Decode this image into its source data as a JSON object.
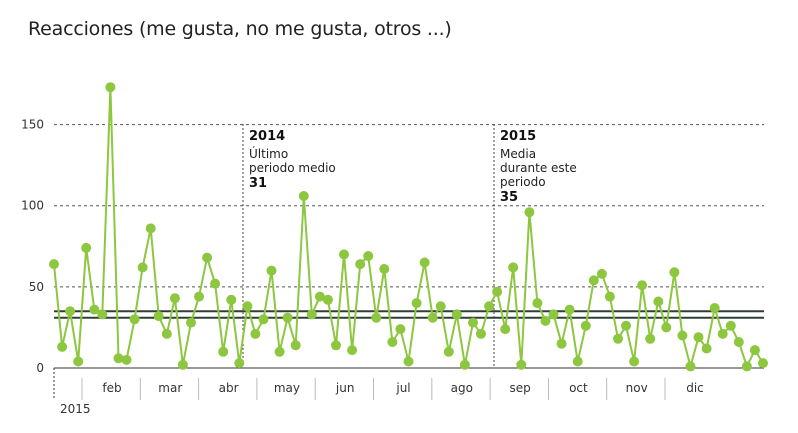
{
  "chart_data": {
    "type": "line",
    "title": "Reacciones (me gusta, no me gusta, otros ...)",
    "xlabel": "",
    "ylabel": "",
    "ylim": [
      0,
      175
    ],
    "yticks": [
      0,
      50,
      100,
      150
    ],
    "year_label": "2015",
    "months": [
      "feb",
      "mar",
      "abr",
      "may",
      "jun",
      "jul",
      "ago",
      "sep",
      "oct",
      "nov",
      "dic"
    ],
    "grid": "horizontal dashed",
    "series": [
      {
        "color": "#8dc63f",
        "values": [
          64,
          13,
          35,
          4,
          74,
          36,
          33,
          173,
          6,
          5,
          30,
          62,
          86,
          32,
          21,
          43,
          2,
          28,
          44,
          68,
          52,
          10,
          42,
          3,
          38,
          21,
          30,
          60,
          10,
          31,
          14,
          106,
          33,
          44,
          42,
          14,
          70,
          11,
          64,
          69,
          31,
          61,
          16,
          24,
          4,
          40,
          65,
          31,
          38,
          10,
          33,
          2,
          28,
          21,
          38,
          47,
          24,
          62,
          2,
          96,
          40,
          29,
          33,
          15,
          36,
          4,
          26,
          54,
          58,
          44,
          18,
          26,
          4,
          51,
          18,
          41,
          25,
          59,
          20,
          1,
          19,
          12,
          37,
          21,
          26,
          16,
          1,
          11,
          3
        ]
      }
    ],
    "reference_lines": [
      {
        "value": 31,
        "color": "#2f3f35"
      },
      {
        "value": 35,
        "color": "#2f3f35"
      }
    ],
    "annotations": [
      {
        "year": "2014",
        "text": [
          "Último",
          "periodo medio"
        ],
        "value": "31"
      },
      {
        "year": "2015",
        "text": [
          "Media",
          "durante este",
          "periodo"
        ],
        "value": "35"
      }
    ]
  },
  "colors": {
    "line": "#8dc63f",
    "marker": "#8dc63f",
    "reference": "#2f3f35",
    "grid": "#555555",
    "axis": "#333333"
  }
}
